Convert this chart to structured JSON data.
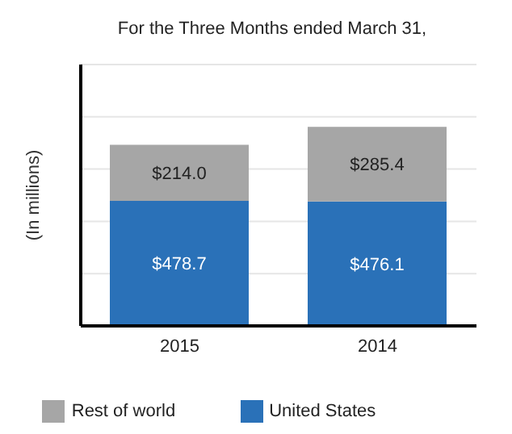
{
  "chart_data": {
    "type": "bar",
    "title": "For the Three Months ended March 31,",
    "ylabel": "(In millions)",
    "categories": [
      "2015",
      "2014"
    ],
    "stacked": true,
    "series": [
      {
        "name": "United States",
        "color": "#2a71b8",
        "values": [
          478.7,
          476.1
        ],
        "value_labels": [
          "$478.7",
          "$476.1"
        ]
      },
      {
        "name": "Rest of world",
        "color": "#a6a6a6",
        "values": [
          214.0,
          285.4
        ],
        "value_labels": [
          "$214.0",
          "$285.4"
        ]
      }
    ],
    "ylim": [
      0,
      1000
    ],
    "yticks": [
      {
        "value": 0,
        "label": null
      },
      {
        "value": 200,
        "label": null
      },
      {
        "value": 400,
        "label": null
      },
      {
        "value": 600,
        "label": null
      },
      {
        "value": 800,
        "label": null
      },
      {
        "value": 1000,
        "label": null
      }
    ],
    "tick_labels": "x",
    "grid": "y",
    "legend": "bottom"
  }
}
